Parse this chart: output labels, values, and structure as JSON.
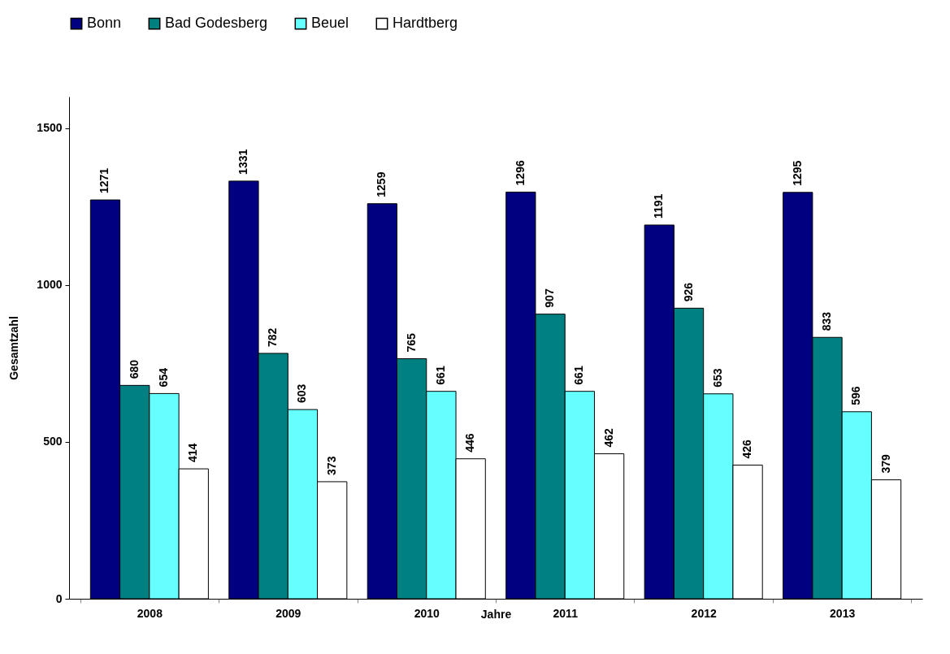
{
  "chart_data": {
    "type": "bar",
    "xlabel": "Jahre",
    "ylabel": "Gesamtzahl",
    "categories": [
      "2008",
      "2009",
      "2010",
      "2011",
      "2012",
      "2013"
    ],
    "series": [
      {
        "name": "Bonn",
        "color": "#000080",
        "values": [
          1271,
          1331,
          1259,
          1296,
          1191,
          1295
        ]
      },
      {
        "name": "Bad Godesberg",
        "color": "#008080",
        "values": [
          680,
          782,
          765,
          907,
          926,
          833
        ]
      },
      {
        "name": "Beuel",
        "color": "#66ffff",
        "values": [
          654,
          603,
          661,
          661,
          653,
          596
        ]
      },
      {
        "name": "Hardtberg",
        "color": "#ffffff",
        "values": [
          414,
          373,
          446,
          462,
          426,
          379
        ]
      }
    ],
    "ylim": [
      0,
      1600
    ],
    "yticks": [
      0,
      500,
      1000,
      1500
    ],
    "grid": false,
    "legend": "top",
    "data_labels": true
  }
}
